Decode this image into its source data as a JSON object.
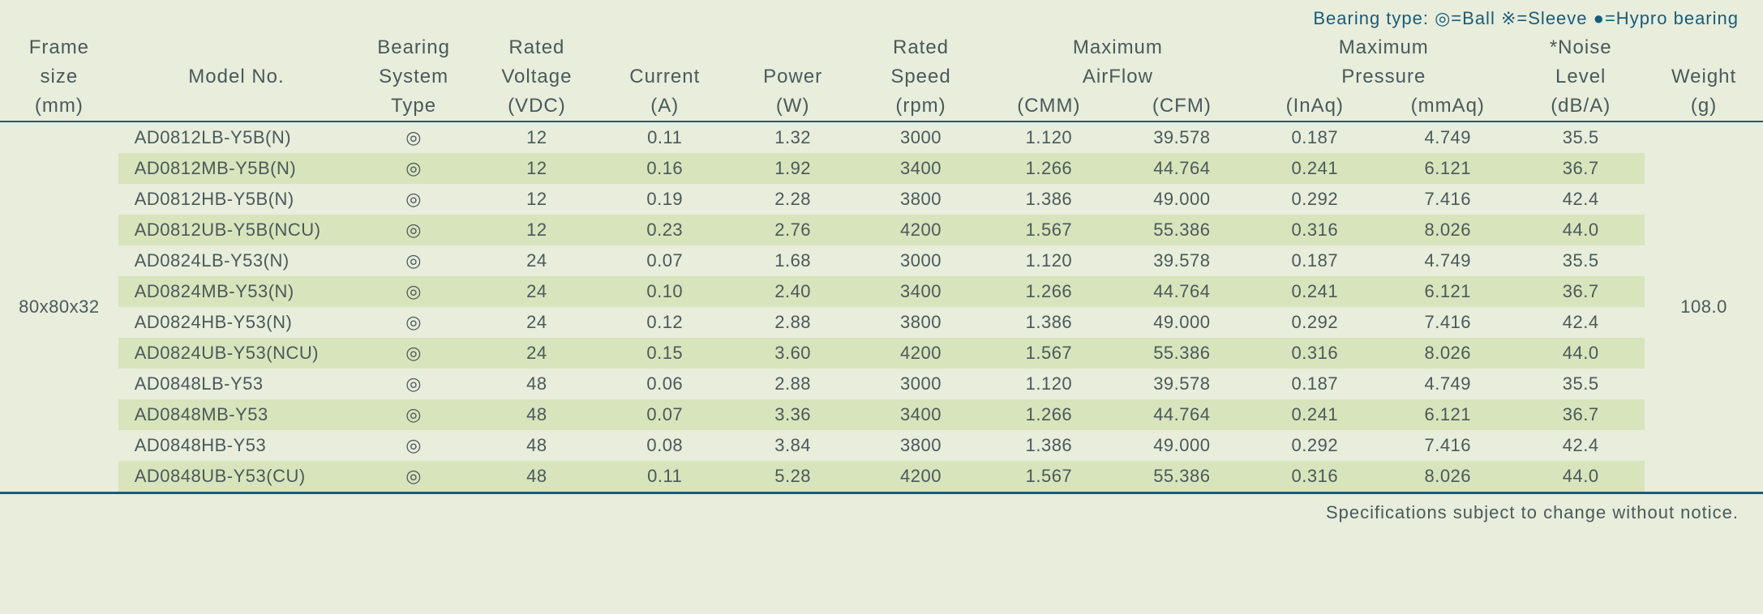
{
  "legend": {
    "prefix": "Bearing type:  ",
    "ball_symbol": "◎",
    "ball_label": "=Ball",
    "sleeve_symbol": "※",
    "sleeve_label": "=Sleeve",
    "hypro_symbol": "●",
    "hypro_label": "=Hypro bearing"
  },
  "headers": {
    "frame_1": "Frame",
    "frame_2": "size",
    "frame_3": "(mm)",
    "model": "Model No.",
    "bearing_1": "Bearing",
    "bearing_2": "System",
    "bearing_3": "Type",
    "voltage_1": "Rated",
    "voltage_2": "Voltage",
    "voltage_3": "(VDC)",
    "current_1": "Current",
    "current_2": "(A)",
    "power_1": "Power",
    "power_2": "(W)",
    "speed_1": "Rated",
    "speed_2": "Speed",
    "speed_3": "(rpm)",
    "airflow_1": "Maximum",
    "airflow_2": "AirFlow",
    "cmm": "(CMM)",
    "cfm": "(CFM)",
    "pressure_1": "Maximum",
    "pressure_2": "Pressure",
    "inaq": "(InAq)",
    "mmaq": "(mmAq)",
    "noise_1": "*Noise",
    "noise_2": "Level",
    "noise_3": "(dB/A)",
    "weight_1": "Weight",
    "weight_2": "(g)"
  },
  "frame_size": "80x80x32",
  "weight": "108.0",
  "bearing_symbol": "◎",
  "rows": [
    {
      "model": "AD0812LB-Y5B(N)",
      "voltage": "12",
      "current": "0.11",
      "power": "1.32",
      "speed": "3000",
      "cmm": "1.120",
      "cfm": "39.578",
      "inaq": "0.187",
      "mmaq": "4.749",
      "noise": "35.5"
    },
    {
      "model": "AD0812MB-Y5B(N)",
      "voltage": "12",
      "current": "0.16",
      "power": "1.92",
      "speed": "3400",
      "cmm": "1.266",
      "cfm": "44.764",
      "inaq": "0.241",
      "mmaq": "6.121",
      "noise": "36.7"
    },
    {
      "model": "AD0812HB-Y5B(N)",
      "voltage": "12",
      "current": "0.19",
      "power": "2.28",
      "speed": "3800",
      "cmm": "1.386",
      "cfm": "49.000",
      "inaq": "0.292",
      "mmaq": "7.416",
      "noise": "42.4"
    },
    {
      "model": "AD0812UB-Y5B(NCU)",
      "voltage": "12",
      "current": "0.23",
      "power": "2.76",
      "speed": "4200",
      "cmm": "1.567",
      "cfm": "55.386",
      "inaq": "0.316",
      "mmaq": "8.026",
      "noise": "44.0"
    },
    {
      "model": "AD0824LB-Y53(N)",
      "voltage": "24",
      "current": "0.07",
      "power": "1.68",
      "speed": "3000",
      "cmm": "1.120",
      "cfm": "39.578",
      "inaq": "0.187",
      "mmaq": "4.749",
      "noise": "35.5"
    },
    {
      "model": "AD0824MB-Y53(N)",
      "voltage": "24",
      "current": "0.10",
      "power": "2.40",
      "speed": "3400",
      "cmm": "1.266",
      "cfm": "44.764",
      "inaq": "0.241",
      "mmaq": "6.121",
      "noise": "36.7"
    },
    {
      "model": "AD0824HB-Y53(N)",
      "voltage": "24",
      "current": "0.12",
      "power": "2.88",
      "speed": "3800",
      "cmm": "1.386",
      "cfm": "49.000",
      "inaq": "0.292",
      "mmaq": "7.416",
      "noise": "42.4"
    },
    {
      "model": "AD0824UB-Y53(NCU)",
      "voltage": "24",
      "current": "0.15",
      "power": "3.60",
      "speed": "4200",
      "cmm": "1.567",
      "cfm": "55.386",
      "inaq": "0.316",
      "mmaq": "8.026",
      "noise": "44.0"
    },
    {
      "model": "AD0848LB-Y53",
      "voltage": "48",
      "current": "0.06",
      "power": "2.88",
      "speed": "3000",
      "cmm": "1.120",
      "cfm": "39.578",
      "inaq": "0.187",
      "mmaq": "4.749",
      "noise": "35.5"
    },
    {
      "model": "AD0848MB-Y53",
      "voltage": "48",
      "current": "0.07",
      "power": "3.36",
      "speed": "3400",
      "cmm": "1.266",
      "cfm": "44.764",
      "inaq": "0.241",
      "mmaq": "6.121",
      "noise": "36.7"
    },
    {
      "model": "AD0848HB-Y53",
      "voltage": "48",
      "current": "0.08",
      "power": "3.84",
      "speed": "3800",
      "cmm": "1.386",
      "cfm": "49.000",
      "inaq": "0.292",
      "mmaq": "7.416",
      "noise": "42.4"
    },
    {
      "model": "AD0848UB-Y53(CU)",
      "voltage": "48",
      "current": "0.11",
      "power": "5.28",
      "speed": "4200",
      "cmm": "1.567",
      "cfm": "55.386",
      "inaq": "0.316",
      "mmaq": "8.026",
      "noise": "44.0"
    }
  ],
  "footer": "Specifications subject to change without notice.",
  "colors": {
    "background": "#e8eddc",
    "row_alt": "#d8e4bc",
    "text": "#4a5a5a",
    "legend_text": "#1a5c7a",
    "border": "#1a5c7a"
  },
  "fontsize": {
    "header": 24,
    "body": 22,
    "legend": 22,
    "footer": 22
  }
}
